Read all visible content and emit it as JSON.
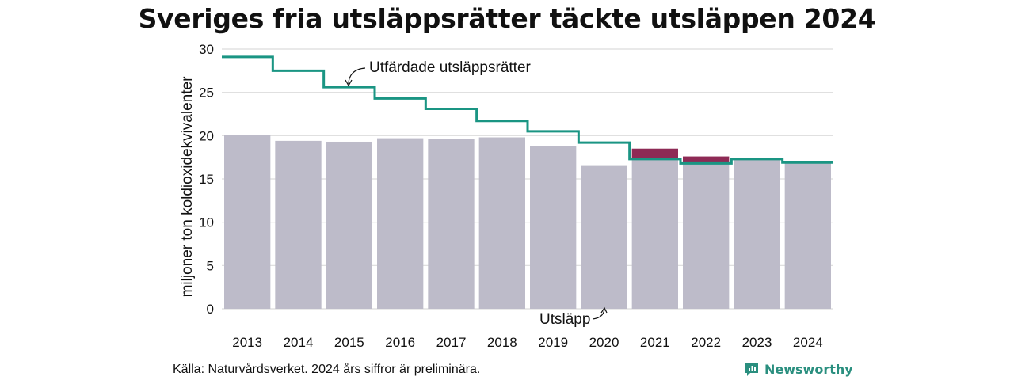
{
  "title": "Sveriges fria utsläppsrätter täckte utsläppen 2024",
  "source": "Källa: Naturvårdsverket. 2024 års siffror är preliminära.",
  "brand": {
    "name": "Newsworthy",
    "icon": "newsworthy-logo-icon"
  },
  "colors": {
    "bars": "#bdbbc9",
    "excess": "#8e2a55",
    "line": "#1a9583",
    "grid": "#dcdcdc"
  },
  "chart_data": {
    "type": "bar",
    "title": "Sveriges fria utsläppsrätter täckte utsläppen 2024",
    "ylabel": "miljoner ton koldioxidekvivalenter",
    "xlabel": "",
    "ylim": [
      0,
      30
    ],
    "yticks": [
      0,
      5,
      10,
      15,
      20,
      25,
      30
    ],
    "grid": true,
    "categories": [
      "2013",
      "2014",
      "2015",
      "2016",
      "2017",
      "2018",
      "2019",
      "2020",
      "2021",
      "2022",
      "2023",
      "2024"
    ],
    "series": [
      {
        "name": "Utsläpp",
        "type": "bar",
        "values": [
          20.1,
          19.4,
          19.3,
          19.7,
          19.6,
          19.8,
          18.8,
          16.5,
          18.5,
          17.6,
          17.2,
          16.8
        ]
      },
      {
        "name": "Utfärdade utsläppsrätter",
        "type": "step",
        "values": [
          29.1,
          27.5,
          25.6,
          24.3,
          23.1,
          21.7,
          20.5,
          19.2,
          17.3,
          16.8,
          17.3,
          16.9
        ]
      }
    ],
    "annotations": [
      {
        "text": "Utfärdade utsläppsrätter",
        "target": "Utfärdade utsläppsrätter"
      },
      {
        "text": "Utsläpp",
        "target": "Utsläpp"
      }
    ]
  }
}
